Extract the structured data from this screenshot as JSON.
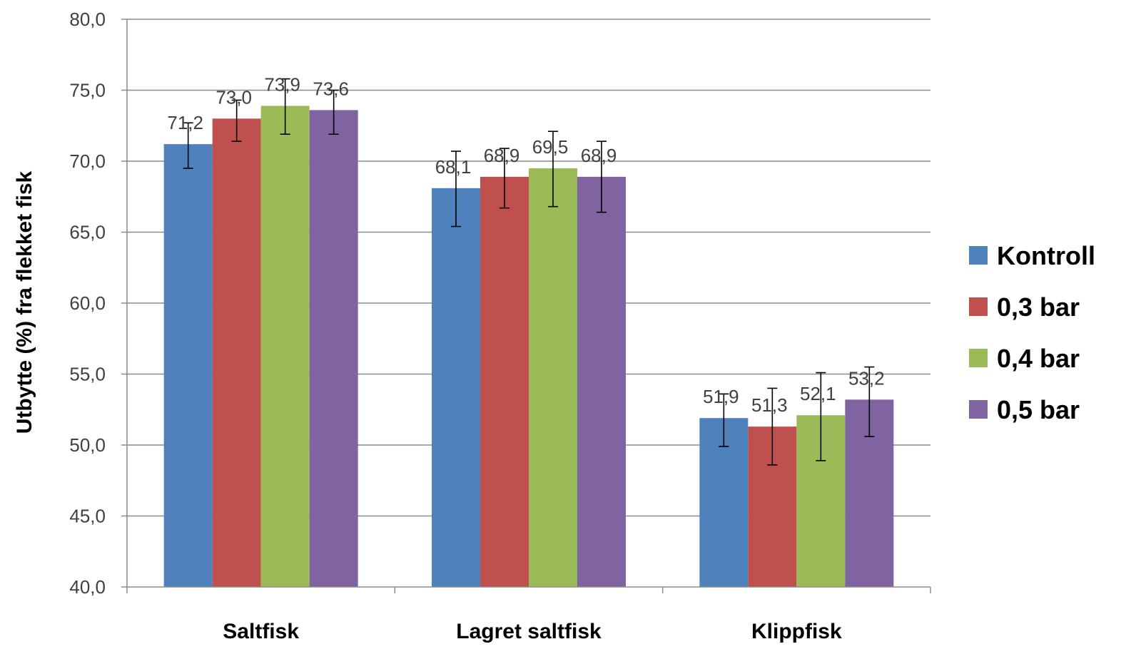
{
  "chart_data": {
    "type": "bar",
    "title": "",
    "xlabel": "",
    "ylabel": "Utbytte (%) fra flekket fisk",
    "ylim": [
      40,
      80
    ],
    "yticks": [
      "40,0",
      "45,0",
      "50,0",
      "55,0",
      "60,0",
      "65,0",
      "70,0",
      "75,0",
      "80,0"
    ],
    "grid": true,
    "legend_position": "right",
    "categories": [
      "Saltfisk",
      "Lagret saltfisk",
      "Klippfisk"
    ],
    "series": [
      {
        "name": "Kontroll",
        "color": "#4F81BD",
        "values": [
          71.2,
          68.1,
          51.9
        ],
        "labels": [
          "71,2",
          "68,1",
          "51,9"
        ],
        "err_low": [
          69.5,
          65.4,
          49.9
        ],
        "err_high": [
          72.7,
          70.7,
          53.6
        ]
      },
      {
        "name": "0,3 bar",
        "color": "#C0504D",
        "values": [
          73.0,
          68.9,
          51.3
        ],
        "labels": [
          "73,0",
          "68,9",
          "51,3"
        ],
        "err_low": [
          71.4,
          66.7,
          48.6
        ],
        "err_high": [
          74.3,
          70.9,
          54.0
        ]
      },
      {
        "name": "0,4 bar",
        "color": "#9BBB59",
        "values": [
          73.9,
          69.5,
          52.1
        ],
        "labels": [
          "73,9",
          "69,5",
          "52,1"
        ],
        "err_low": [
          71.9,
          66.8,
          48.9
        ],
        "err_high": [
          75.8,
          72.1,
          55.1
        ]
      },
      {
        "name": "0,5 bar",
        "color": "#8064A2",
        "values": [
          73.6,
          68.9,
          53.2
        ],
        "labels": [
          "73,6",
          "68,9",
          "53,2"
        ],
        "err_low": [
          71.9,
          66.4,
          50.6
        ],
        "err_high": [
          75.0,
          71.4,
          55.5
        ]
      }
    ]
  }
}
